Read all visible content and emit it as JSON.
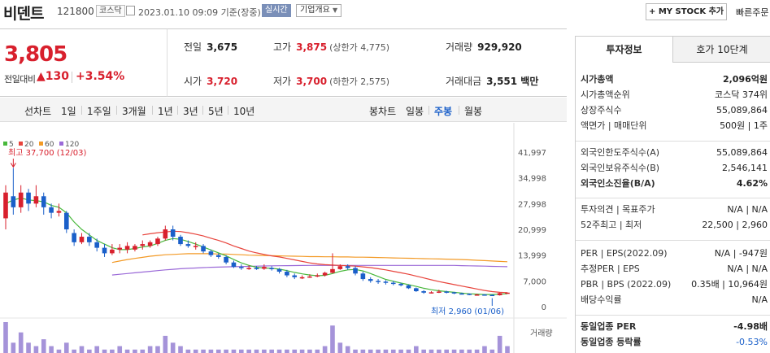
{
  "header": {
    "name": "비덴트",
    "code": "121800",
    "market": "코스닥",
    "datetime": "2023.01.10 09:09  기준(장중)",
    "realtime": "실시간",
    "company_info": "기업개요",
    "mystock": "+ MY STOCK 추가",
    "quick": "빠른주문"
  },
  "price": {
    "current": "3,805",
    "label": "전일대비",
    "change": "▲130",
    "percent": "+3.54%"
  },
  "stats": {
    "prev_label": "전일",
    "prev": "3,675",
    "high_label": "고가",
    "high": "3,875",
    "upper_limit": "(상한가 4,775)",
    "vol_label": "거래량",
    "vol": "929,920",
    "open_label": "시가",
    "open": "3,720",
    "low_label": "저가",
    "low": "3,700",
    "lower_limit": "(하한가 2,575)",
    "amt_label": "거래대금",
    "amt": "3,551 백만"
  },
  "chart_tabs": {
    "line_label": "선차트",
    "line_periods": [
      "1일",
      "1주일",
      "3개월",
      "1년",
      "3년",
      "5년",
      "10년"
    ],
    "candle_label": "봉차트",
    "candle_periods": [
      "일봉",
      "주봉",
      "월봉"
    ],
    "active": "주봉"
  },
  "colors": {
    "up": "#d8202d",
    "down": "#1a5fc9",
    "ma5": "#48b83b",
    "ma20": "#e8443c",
    "ma60": "#f39a26",
    "ma120": "#9b6ad8"
  },
  "chart_data": {
    "type": "candlestick",
    "legend": [
      "5",
      "20",
      "60",
      "120"
    ],
    "y_ticks": [
      "41,997",
      "34,998",
      "27,998",
      "20,999",
      "13,999",
      "7,000",
      "0"
    ],
    "ylim": [
      0,
      41997
    ],
    "high_annotation": "최고 37,700 (12/03)",
    "low_annotation": "최저 2,960 (01/06)",
    "volume_label": "거래량",
    "candles": [
      {
        "o": 24000,
        "c": 31000,
        "h": 33000,
        "l": 21000
      },
      {
        "o": 30000,
        "c": 27000,
        "h": 37700,
        "l": 25000
      },
      {
        "o": 27000,
        "c": 31000,
        "h": 33000,
        "l": 25500
      },
      {
        "o": 31000,
        "c": 28000,
        "h": 32000,
        "l": 26000
      },
      {
        "o": 28000,
        "c": 30000,
        "h": 33000,
        "l": 27000
      },
      {
        "o": 30000,
        "c": 27000,
        "h": 31000,
        "l": 25000
      },
      {
        "o": 27000,
        "c": 25500,
        "h": 28000,
        "l": 24000
      },
      {
        "o": 25500,
        "c": 26000,
        "h": 28000,
        "l": 24500
      },
      {
        "o": 25500,
        "c": 21000,
        "h": 26000,
        "l": 20000
      },
      {
        "o": 20000,
        "c": 17500,
        "h": 21000,
        "l": 16500
      },
      {
        "o": 17500,
        "c": 19000,
        "h": 20000,
        "l": 17000
      },
      {
        "o": 19000,
        "c": 17500,
        "h": 20000,
        "l": 16500
      },
      {
        "o": 17500,
        "c": 16000,
        "h": 18500,
        "l": 15000
      },
      {
        "o": 16000,
        "c": 14500,
        "h": 17000,
        "l": 13500
      },
      {
        "o": 14500,
        "c": 15500,
        "h": 17000,
        "l": 14000
      },
      {
        "o": 15500,
        "c": 16000,
        "h": 17000,
        "l": 14500
      },
      {
        "o": 15500,
        "c": 16500,
        "h": 17500,
        "l": 14500
      },
      {
        "o": 15500,
        "c": 16500,
        "h": 17000,
        "l": 15000
      },
      {
        "o": 16500,
        "c": 17000,
        "h": 18000,
        "l": 15500
      },
      {
        "o": 16500,
        "c": 17500,
        "h": 18000,
        "l": 16000
      },
      {
        "o": 17000,
        "c": 18500,
        "h": 19000,
        "l": 16500
      },
      {
        "o": 18500,
        "c": 21000,
        "h": 22000,
        "l": 18000
      },
      {
        "o": 21000,
        "c": 19000,
        "h": 22000,
        "l": 18000
      },
      {
        "o": 19000,
        "c": 17000,
        "h": 19500,
        "l": 16500
      },
      {
        "o": 17000,
        "c": 16500,
        "h": 18000,
        "l": 16000
      },
      {
        "o": 16500,
        "c": 16500,
        "h": 17500,
        "l": 15500
      },
      {
        "o": 16500,
        "c": 15000,
        "h": 17000,
        "l": 14500
      },
      {
        "o": 15000,
        "c": 14000,
        "h": 15500,
        "l": 13500
      },
      {
        "o": 14000,
        "c": 13500,
        "h": 14500,
        "l": 13000
      },
      {
        "o": 13500,
        "c": 12000,
        "h": 14000,
        "l": 11500
      },
      {
        "o": 12000,
        "c": 10800,
        "h": 12500,
        "l": 10500
      },
      {
        "o": 10800,
        "c": 10500,
        "h": 11500,
        "l": 10000
      },
      {
        "o": 10500,
        "c": 10500,
        "h": 11200,
        "l": 10000
      },
      {
        "o": 10500,
        "c": 10300,
        "h": 11000,
        "l": 10000
      },
      {
        "o": 10300,
        "c": 10800,
        "h": 11500,
        "l": 10000
      },
      {
        "o": 10500,
        "c": 10200,
        "h": 11000,
        "l": 9800
      },
      {
        "o": 10200,
        "c": 9500,
        "h": 10500,
        "l": 9000
      },
      {
        "o": 9500,
        "c": 8500,
        "h": 10000,
        "l": 8000
      },
      {
        "o": 8500,
        "c": 8000,
        "h": 9000,
        "l": 7500
      },
      {
        "o": 8000,
        "c": 8000,
        "h": 8500,
        "l": 7500
      },
      {
        "o": 8000,
        "c": 8200,
        "h": 8800,
        "l": 7800
      },
      {
        "o": 8200,
        "c": 8500,
        "h": 9000,
        "l": 8000
      },
      {
        "o": 8500,
        "c": 9200,
        "h": 9500,
        "l": 8200
      },
      {
        "o": 9200,
        "c": 10200,
        "h": 14500,
        "l": 9000
      },
      {
        "o": 10200,
        "c": 11000,
        "h": 11500,
        "l": 10000
      },
      {
        "o": 11000,
        "c": 10500,
        "h": 11500,
        "l": 10000
      },
      {
        "o": 10500,
        "c": 9000,
        "h": 11000,
        "l": 8500
      },
      {
        "o": 9000,
        "c": 7500,
        "h": 9500,
        "l": 7000
      },
      {
        "o": 7500,
        "c": 7000,
        "h": 8000,
        "l": 6500
      },
      {
        "o": 7000,
        "c": 6800,
        "h": 7500,
        "l": 6200
      },
      {
        "o": 6800,
        "c": 6500,
        "h": 7200,
        "l": 6000
      },
      {
        "o": 6500,
        "c": 6200,
        "h": 7000,
        "l": 5800
      },
      {
        "o": 6200,
        "c": 5800,
        "h": 6500,
        "l": 5500
      },
      {
        "o": 5800,
        "c": 5000,
        "h": 6000,
        "l": 4800
      },
      {
        "o": 5000,
        "c": 4200,
        "h": 5200,
        "l": 4000
      },
      {
        "o": 4200,
        "c": 3800,
        "h": 4500,
        "l": 3500
      },
      {
        "o": 3800,
        "c": 3900,
        "h": 4200,
        "l": 3600
      },
      {
        "o": 3900,
        "c": 4100,
        "h": 4600,
        "l": 3700
      },
      {
        "o": 4100,
        "c": 3900,
        "h": 4300,
        "l": 3600
      },
      {
        "o": 3900,
        "c": 3600,
        "h": 4000,
        "l": 3400
      },
      {
        "o": 3600,
        "c": 3500,
        "h": 3800,
        "l": 3300
      },
      {
        "o": 3500,
        "c": 3300,
        "h": 3600,
        "l": 3100
      },
      {
        "o": 3300,
        "c": 3300,
        "h": 3500,
        "l": 3100
      },
      {
        "o": 3300,
        "c": 3200,
        "h": 3400,
        "l": 3100
      },
      {
        "o": 3200,
        "c": 3100,
        "h": 3300,
        "l": 2960
      },
      {
        "o": 3100,
        "c": 3675,
        "h": 3800,
        "l": 3000
      },
      {
        "o": 3720,
        "c": 3805,
        "h": 3875,
        "l": 3700
      }
    ],
    "ma5": [
      28000,
      29000,
      29500,
      29000,
      28800,
      28500,
      27500,
      27000,
      25500,
      23000,
      21000,
      19500,
      18000,
      17000,
      16000,
      15500,
      15500,
      15800,
      16200,
      16500,
      17200,
      18000,
      18500,
      18300,
      17700,
      17000,
      16200,
      15400,
      14600,
      13800,
      12800,
      11900,
      11200,
      10700,
      10500,
      10400,
      10200,
      9800,
      9300,
      8900,
      8600,
      8400,
      8500,
      9000,
      9600,
      10000,
      10100,
      9700,
      9000,
      8200,
      7400,
      6900,
      6400,
      6000,
      5500,
      5000,
      4600,
      4300,
      4100,
      3900,
      3700,
      3500,
      3400,
      3300,
      3300,
      3400,
      3500
    ],
    "ma20": [
      null,
      null,
      null,
      null,
      null,
      null,
      null,
      null,
      null,
      null,
      null,
      null,
      null,
      null,
      null,
      null,
      null,
      null,
      19500,
      19800,
      20100,
      20300,
      20500,
      20400,
      20100,
      19700,
      19200,
      18600,
      18000,
      17300,
      16500,
      15800,
      15100,
      14600,
      14200,
      13800,
      13500,
      13100,
      12700,
      12300,
      11900,
      11600,
      11400,
      11300,
      11200,
      11100,
      11000,
      10800,
      10600,
      10300,
      10000,
      9600,
      9200,
      8800,
      8300,
      7800,
      7300,
      6800,
      6400,
      6000,
      5600,
      5200,
      4800,
      4400,
      4100,
      3900,
      3800
    ],
    "ma60": [
      null,
      null,
      null,
      null,
      null,
      null,
      null,
      null,
      null,
      null,
      null,
      null,
      null,
      null,
      12000,
      12400,
      12800,
      13100,
      13400,
      13700,
      13900,
      14100,
      14200,
      14300,
      14400,
      14400,
      14400,
      14400,
      14300,
      14300,
      14200,
      14100,
      14000,
      13950,
      13900,
      13850,
      13800,
      13750,
      13700,
      13650,
      13600,
      13600,
      13550,
      13550,
      13500,
      13500,
      13450,
      13450,
      13400,
      13350,
      13300,
      13250,
      13200,
      13150,
      13100,
      13050,
      13000,
      12950,
      12900,
      12850,
      12800,
      12700,
      12600,
      12500,
      12400,
      12300,
      12200
    ],
    "ma120": [
      null,
      null,
      null,
      null,
      null,
      null,
      null,
      null,
      null,
      null,
      null,
      null,
      null,
      null,
      8600,
      8800,
      9000,
      9200,
      9400,
      9600,
      9800,
      10000,
      10150,
      10300,
      10400,
      10500,
      10600,
      10700,
      10750,
      10800,
      10850,
      10900,
      10950,
      11000,
      11050,
      11100,
      11120,
      11140,
      11160,
      11180,
      11200,
      11200,
      11200,
      11200,
      11200,
      11200,
      11200,
      11200,
      11200,
      11200,
      11200,
      11200,
      11200,
      11200,
      11200,
      11200,
      11200,
      11200,
      11200,
      11200,
      11150,
      11100,
      11050,
      11000,
      10950,
      10900,
      10850
    ],
    "volumes": [
      9,
      3,
      6,
      3,
      2,
      4,
      2,
      1,
      3,
      1,
      2,
      1,
      2,
      1,
      1,
      2,
      1,
      1,
      1,
      2,
      2,
      5,
      3,
      2,
      1,
      1,
      1,
      1,
      1,
      1,
      1,
      1,
      1,
      1,
      1,
      1,
      1,
      1,
      1,
      1,
      1,
      1,
      2,
      8,
      3,
      2,
      1,
      1,
      1,
      1,
      1,
      1,
      1,
      1,
      2,
      1,
      1,
      1,
      1,
      1,
      1,
      1,
      1,
      2,
      1,
      5,
      2
    ]
  },
  "right_panel": {
    "tab_invest": "투자정보",
    "tab_hoga": "호가 10단계",
    "rows1": [
      {
        "k": "시가총액",
        "v": "2,096억원",
        "bold": true
      },
      {
        "k": "시가총액순위",
        "v": "코스닥 374위"
      },
      {
        "k": "상장주식수",
        "v": "55,089,864"
      },
      {
        "k": "액면가 | 매매단위",
        "v": "500원 | 1주"
      }
    ],
    "rows2": [
      {
        "k": "외국인한도주식수(A)",
        "v": "55,089,864"
      },
      {
        "k": "외국인보유주식수(B)",
        "v": "2,546,141"
      },
      {
        "k": "외국인소진율(B/A)",
        "v": "4.62%",
        "bold": true
      }
    ],
    "rows3": [
      {
        "k": "투자의견 | 목표주가",
        "v": "N/A | N/A"
      },
      {
        "k": "52주최고 | 최저",
        "v": "22,500 | 2,960"
      }
    ],
    "rows4": [
      {
        "k": "PER | EPS(2022.09)",
        "v": "N/A | -947원"
      },
      {
        "k": "추정PER | EPS",
        "v": "N/A | N/A"
      },
      {
        "k": "PBR | BPS (2022.09)",
        "v": "0.35배 | 10,964원"
      },
      {
        "k": "배당수익률",
        "v": "N/A"
      }
    ],
    "rows5": [
      {
        "k": "동일업종 PER",
        "v": "-4.98배",
        "bold": true
      },
      {
        "k": "동일업종 등락률",
        "v": "-0.53%",
        "bold": true
      }
    ]
  }
}
